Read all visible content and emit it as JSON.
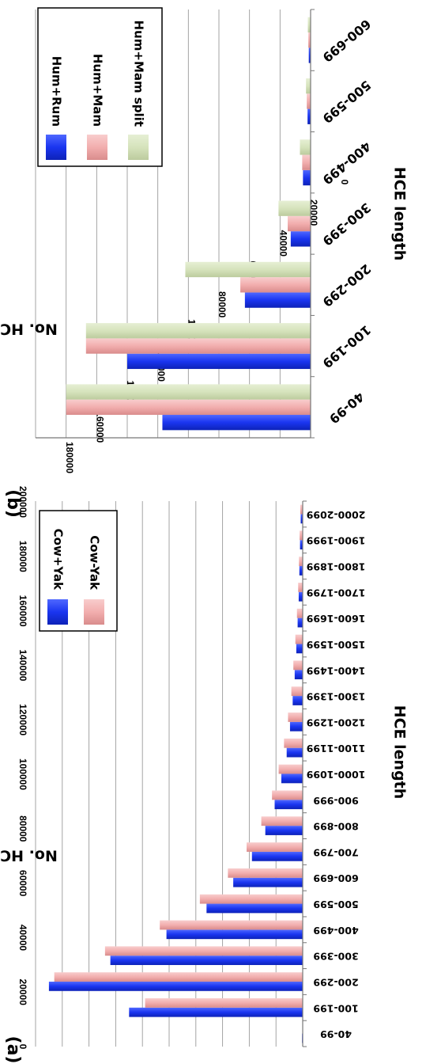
{
  "chart_data": [
    {
      "panel": "(a)",
      "type": "bar",
      "xlabel": "HCE length",
      "ylabel": "No. HCE",
      "ylim": [
        0,
        200000
      ],
      "yticks": [
        "0",
        "20000",
        "40000",
        "60000",
        "80000",
        "100000",
        "120000",
        "140000",
        "160000",
        "180000",
        "200000"
      ],
      "grid": true,
      "legend_position": "top-right",
      "categories": [
        "40-99",
        "100-199",
        "200-299",
        "300-399",
        "400-499",
        "500-599",
        "600-699",
        "700-799",
        "800-899",
        "900-999",
        "1000-1099",
        "1100-1199",
        "1200-1299",
        "1300-1399",
        "1400-1499",
        "1500-1599",
        "1600-1699",
        "1700-1799",
        "1800-1899",
        "1900-1999",
        "2000-2099"
      ],
      "series": [
        {
          "name": "Cow+Yak",
          "color": "#1a35f0",
          "values": [
            500,
            130000,
            190000,
            144000,
            102000,
            72000,
            52000,
            38000,
            28000,
            21000,
            16000,
            12000,
            9500,
            7500,
            6000,
            4800,
            3800,
            3000,
            2500,
            2000,
            1500
          ]
        },
        {
          "name": "Cow-Yak",
          "color": "#f2aeae",
          "values": [
            0,
            118000,
            186000,
            148000,
            107000,
            77000,
            56000,
            42000,
            31000,
            23000,
            18000,
            14000,
            11000,
            8500,
            7000,
            5500,
            4300,
            3400,
            2800,
            2300,
            1800
          ]
        }
      ]
    },
    {
      "panel": "(b)",
      "type": "bar",
      "xlabel": "HCE length",
      "ylabel": "No. HCE",
      "ylim": [
        0,
        180000
      ],
      "yticks": [
        "0",
        "20000",
        "40000",
        "60000",
        "80000",
        "100000",
        "120000",
        "140000",
        "160000",
        "180000"
      ],
      "grid": true,
      "legend_position": "top-right",
      "categories": [
        "40-99",
        "100-199",
        "200-299",
        "300-399",
        "400-499",
        "500-599",
        "600-699"
      ],
      "series": [
        {
          "name": "Hum+Rum",
          "color": "#1a35f0",
          "values": [
            97000,
            120000,
            43000,
            13000,
            5000,
            2000,
            1200
          ]
        },
        {
          "name": "Hum+Mam",
          "color": "#f2aeae",
          "values": [
            160000,
            147000,
            46000,
            15000,
            5500,
            2500,
            1500
          ]
        },
        {
          "name": "Hum+Mam split",
          "color": "#d6e3bc",
          "values": [
            160000,
            147000,
            82000,
            21000,
            7000,
            3000,
            1800
          ]
        }
      ]
    }
  ]
}
